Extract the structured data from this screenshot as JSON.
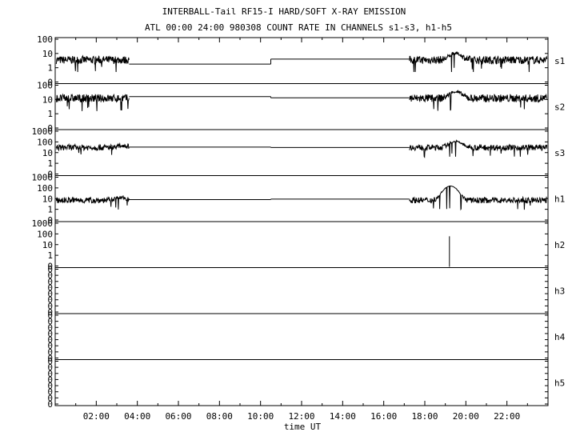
{
  "title": "INTERBALL-Tail RF15-I HARD/SOFT X-RAY EMISSION",
  "subtitle": "ATL 00:00 24:00 980308  COUNT RATE IN CHANNELS s1-s3, h1-h5",
  "chart_data": {
    "type": "line",
    "xlabel": "time UT",
    "xlim": [
      0,
      24
    ],
    "x_unit": "hours UT",
    "xticks": [
      "02:00",
      "04:00",
      "06:00",
      "08:00",
      "10:00",
      "12:00",
      "14:00",
      "16:00",
      "18:00",
      "20:00",
      "22:00"
    ],
    "yscale": "log",
    "grid": false,
    "legend": "none",
    "panels": [
      {
        "name": "s1",
        "yticks": [
          "100",
          "10",
          "1",
          "0"
        ],
        "baseline": 3.5,
        "segments": [
          {
            "x": [
              0.05,
              3.6
            ],
            "level": 3.5,
            "noisy": true
          },
          {
            "x": [
              3.6,
              10.5
            ],
            "level": 1.8,
            "noisy": false
          },
          {
            "x": [
              10.5,
              17.25
            ],
            "level": 4.0,
            "noisy": false
          },
          {
            "x": [
              17.25,
              23.95
            ],
            "level": 3.5,
            "noisy": true
          }
        ],
        "peaks": [
          {
            "x": 19.5,
            "y": 10
          }
        ]
      },
      {
        "name": "s2",
        "yticks": [
          "100",
          "10",
          "1",
          "0"
        ],
        "baseline": 12,
        "segments": [
          {
            "x": [
              0.05,
              3.6
            ],
            "level": 12,
            "noisy": true
          },
          {
            "x": [
              3.6,
              10.5
            ],
            "level": 16,
            "noisy": false
          },
          {
            "x": [
              10.5,
              17.25
            ],
            "level": 13,
            "noisy": false
          },
          {
            "x": [
              17.25,
              23.95
            ],
            "level": 12,
            "noisy": true
          }
        ],
        "peaks": [
          {
            "x": 19.5,
            "y": 35
          }
        ]
      },
      {
        "name": "s3",
        "yticks": [
          "1000",
          "100",
          "10",
          "1",
          "0"
        ],
        "baseline": 30,
        "segments": [
          {
            "x": [
              0.05,
              3.6
            ],
            "level": 30,
            "noisy": true
          },
          {
            "x": [
              3.6,
              10.5
            ],
            "level": 33,
            "noisy": false
          },
          {
            "x": [
              10.5,
              17.25
            ],
            "level": 30,
            "noisy": false
          },
          {
            "x": [
              17.25,
              23.95
            ],
            "level": 30,
            "noisy": true
          }
        ],
        "peaks": [
          {
            "x": 3.3,
            "y": 45
          },
          {
            "x": 19.5,
            "y": 110
          }
        ]
      },
      {
        "name": "h1",
        "yticks": [
          "1000",
          "100",
          "10",
          "1",
          "0"
        ],
        "baseline": 7,
        "segments": [
          {
            "x": [
              0.05,
              3.6
            ],
            "level": 7,
            "noisy": true
          },
          {
            "x": [
              3.6,
              10.5
            ],
            "level": 8,
            "noisy": false
          },
          {
            "x": [
              10.5,
              17.25
            ],
            "level": 9,
            "noisy": false
          },
          {
            "x": [
              17.25,
              23.95
            ],
            "level": 7,
            "noisy": true
          }
        ],
        "peaks": [
          {
            "x": 3.2,
            "y": 12
          },
          {
            "x": 19.25,
            "y": 150
          }
        ]
      },
      {
        "name": "h2",
        "yticks": [
          "1000",
          "100",
          "10",
          "1",
          "0"
        ],
        "baseline": null,
        "segments": [],
        "spikes": [
          {
            "x": 19.2,
            "y": 60
          }
        ]
      },
      {
        "name": "h3",
        "yticks": [
          "0",
          "0",
          "0",
          "0",
          "0",
          "0",
          "0",
          "0"
        ],
        "baseline": null,
        "segments": []
      },
      {
        "name": "h4",
        "yticks": [
          "0",
          "0",
          "0",
          "0",
          "0",
          "0",
          "0",
          "0"
        ],
        "baseline": null,
        "segments": []
      },
      {
        "name": "h5",
        "yticks": [
          "0",
          "0",
          "0",
          "0",
          "0",
          "0",
          "0",
          "0"
        ],
        "baseline": null,
        "segments": []
      }
    ]
  }
}
